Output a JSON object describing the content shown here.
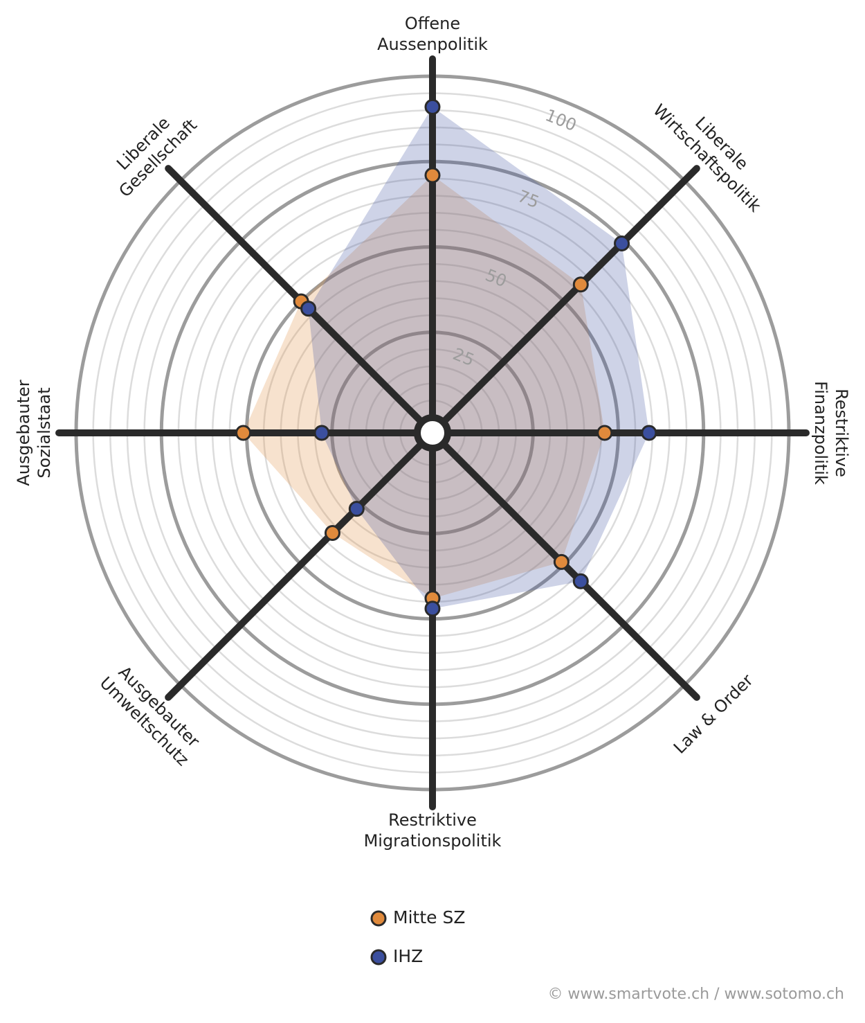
{
  "chart_data": {
    "type": "radar",
    "categories": [
      [
        "Offene",
        "Aussenpolitik"
      ],
      [
        "Liberale",
        "Wirtschaftspolitik"
      ],
      [
        "Restriktive",
        "Finanzpolitik"
      ],
      [
        "Law & Order"
      ],
      [
        "Restriktive",
        "Migrationspolitik"
      ],
      [
        "Ausgebauter",
        "Umweltschutz"
      ],
      [
        "Ausgebauter",
        "Sozialstaat"
      ],
      [
        "Liberale",
        "Gesellschaft"
      ]
    ],
    "series": [
      {
        "name": "Mitte SZ",
        "color": "#e08a3c",
        "values": [
          71,
          57,
          46,
          49,
          44,
          37,
          51,
          50
        ]
      },
      {
        "name": "IHZ",
        "color": "#3b4f9e",
        "values": [
          91,
          74,
          59,
          57,
          47,
          27,
          28,
          47
        ]
      }
    ],
    "rlim": [
      0,
      100
    ],
    "rticks": [
      25,
      50,
      75,
      100
    ],
    "minor_rticks": [
      5,
      10,
      15,
      20,
      30,
      35,
      40,
      45,
      55,
      60,
      65,
      70,
      80,
      85,
      90,
      95
    ],
    "source": "© www.smartvote.ch / www.sotomo.ch"
  }
}
